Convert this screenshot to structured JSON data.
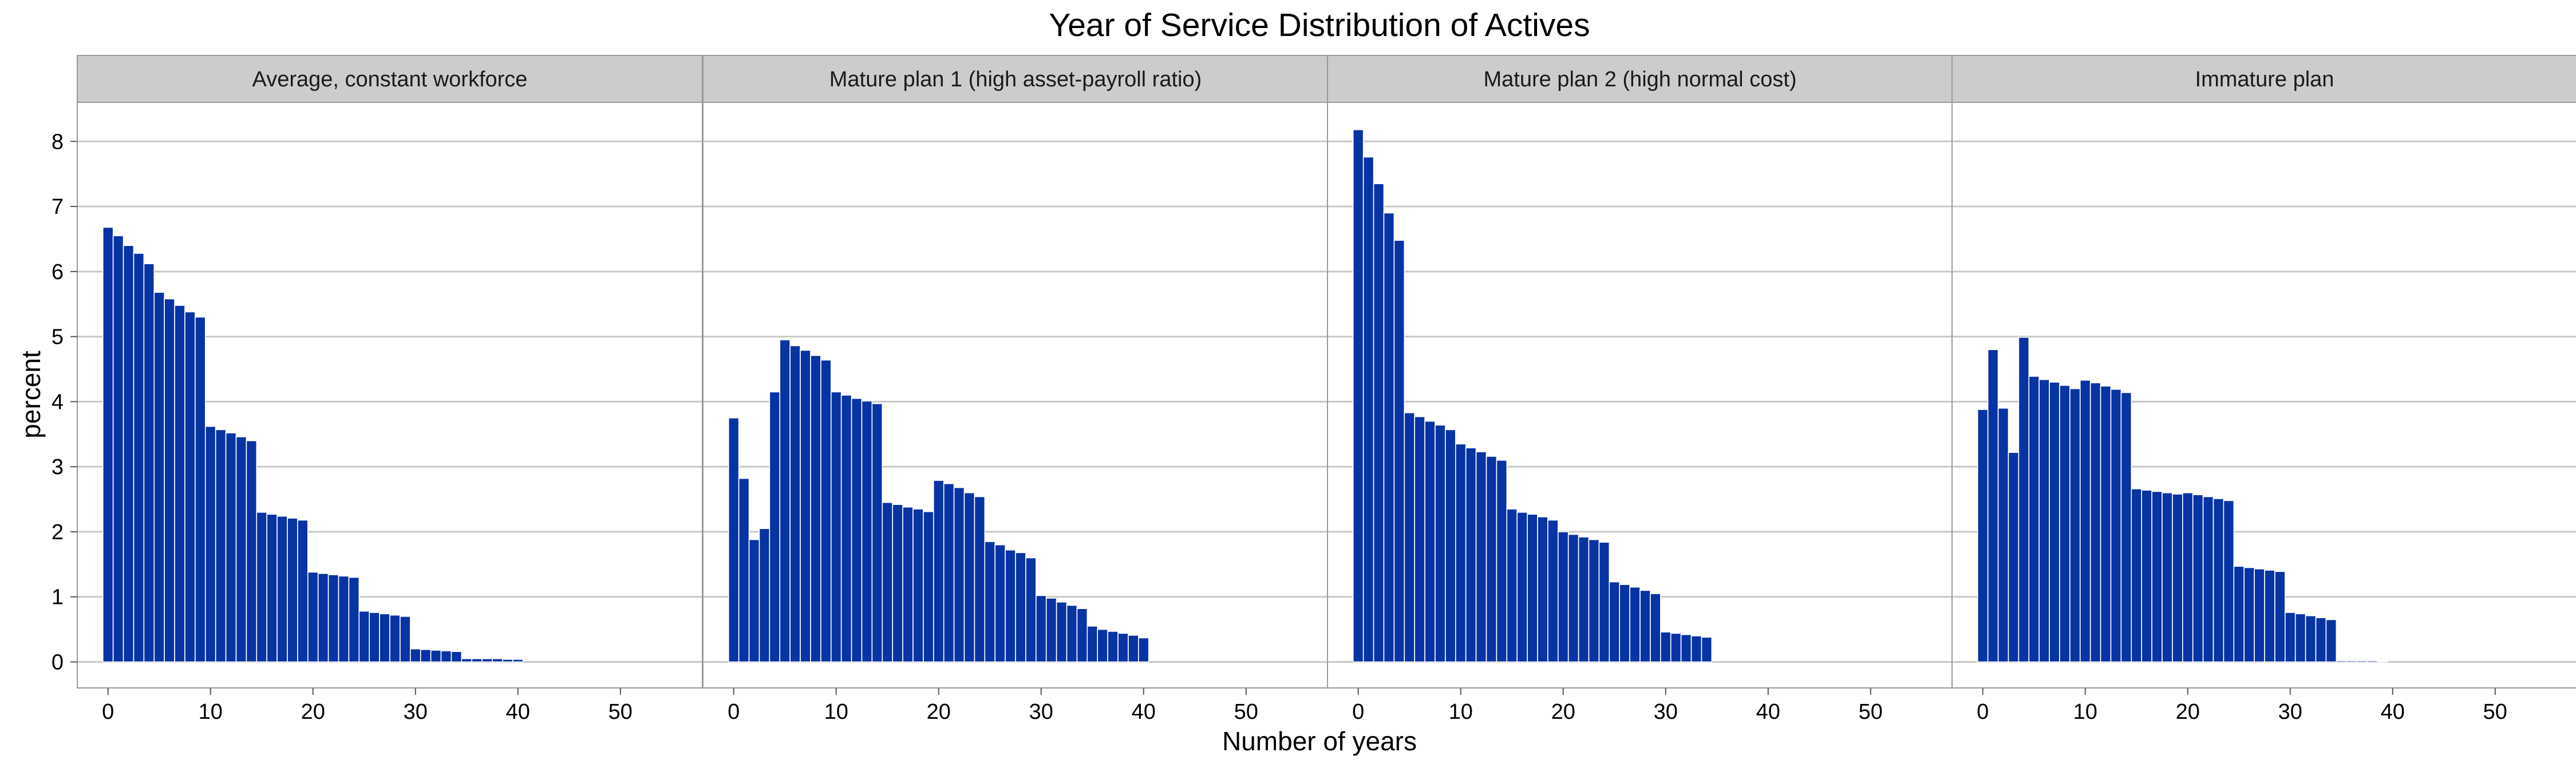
{
  "chart_data": {
    "type": "bar",
    "title": "Year of Service Distribution of Actives",
    "xlabel": "Number of years",
    "ylabel": "percent",
    "xlim": [
      -3,
      58
    ],
    "ylim": [
      -0.4,
      8.6
    ],
    "xticks": [
      0,
      10,
      20,
      30,
      40,
      50
    ],
    "yticks": [
      0,
      1,
      2,
      3,
      4,
      5,
      6,
      7,
      8
    ],
    "grid": true,
    "legend": "none",
    "colors": {
      "bar_fill": "#0833A3",
      "bar_edge": "#ffffff",
      "strip_fill": "#cccccc",
      "grid": "#c8c8c8",
      "panel_border": "#9a9a9a"
    },
    "panels": [
      {
        "strip": "Average, constant workforce",
        "x": [
          0,
          1,
          2,
          3,
          4,
          5,
          6,
          7,
          8,
          9,
          10,
          11,
          12,
          13,
          14,
          15,
          16,
          17,
          18,
          19,
          20,
          21,
          22,
          23,
          24,
          25,
          26,
          27,
          28,
          29,
          30,
          31,
          32,
          33,
          34,
          35,
          36,
          37,
          38,
          39,
          40
        ],
        "values": [
          6.68,
          6.55,
          6.4,
          6.28,
          6.12,
          5.68,
          5.58,
          5.48,
          5.38,
          5.3,
          3.62,
          3.57,
          3.52,
          3.46,
          3.4,
          2.3,
          2.27,
          2.24,
          2.21,
          2.18,
          1.38,
          1.36,
          1.34,
          1.32,
          1.3,
          0.78,
          0.76,
          0.74,
          0.72,
          0.7,
          0.2,
          0.19,
          0.18,
          0.17,
          0.16,
          0.05,
          0.05,
          0.05,
          0.05,
          0.04,
          0.04
        ]
      },
      {
        "strip": "Mature plan 1 (high asset-payroll ratio)",
        "x": [
          0,
          1,
          2,
          3,
          4,
          5,
          6,
          7,
          8,
          9,
          10,
          11,
          12,
          13,
          14,
          15,
          16,
          17,
          18,
          19,
          20,
          21,
          22,
          23,
          24,
          25,
          26,
          27,
          28,
          29,
          30,
          31,
          32,
          33,
          34,
          35,
          36,
          37,
          38,
          39,
          40
        ],
        "values": [
          3.75,
          2.82,
          1.88,
          2.05,
          4.15,
          4.95,
          4.86,
          4.79,
          4.71,
          4.64,
          4.15,
          4.1,
          4.05,
          4.01,
          3.97,
          2.45,
          2.42,
          2.38,
          2.35,
          2.31,
          2.79,
          2.74,
          2.68,
          2.6,
          2.54,
          1.85,
          1.8,
          1.72,
          1.68,
          1.6,
          1.02,
          0.98,
          0.92,
          0.87,
          0.82,
          0.55,
          0.5,
          0.47,
          0.44,
          0.41,
          0.37
        ]
      },
      {
        "strip": "Mature plan 2 (high normal cost)",
        "x": [
          0,
          1,
          2,
          3,
          4,
          5,
          6,
          7,
          8,
          9,
          10,
          11,
          12,
          13,
          14,
          15,
          16,
          17,
          18,
          19,
          20,
          21,
          22,
          23,
          24,
          25,
          26,
          27,
          28,
          29,
          30,
          31,
          32,
          33,
          34
        ],
        "values": [
          8.18,
          7.76,
          7.35,
          6.9,
          6.48,
          3.83,
          3.77,
          3.7,
          3.64,
          3.57,
          3.35,
          3.29,
          3.23,
          3.16,
          3.1,
          2.35,
          2.3,
          2.27,
          2.23,
          2.18,
          2.0,
          1.96,
          1.92,
          1.88,
          1.84,
          1.23,
          1.19,
          1.15,
          1.1,
          1.05,
          0.46,
          0.44,
          0.42,
          0.4,
          0.38
        ]
      },
      {
        "strip": "Immature plan",
        "x": [
          0,
          1,
          2,
          3,
          4,
          5,
          6,
          7,
          8,
          9,
          10,
          11,
          12,
          13,
          14,
          15,
          16,
          17,
          18,
          19,
          20,
          21,
          22,
          23,
          24,
          25,
          26,
          27,
          28,
          29,
          30,
          31,
          32,
          33,
          34,
          35,
          36,
          37,
          38,
          39
        ],
        "values": [
          3.88,
          4.8,
          3.9,
          3.22,
          4.99,
          4.39,
          4.34,
          4.3,
          4.25,
          4.2,
          4.33,
          4.29,
          4.24,
          4.19,
          4.14,
          2.66,
          2.64,
          2.62,
          2.6,
          2.58,
          2.6,
          2.57,
          2.54,
          2.51,
          2.48,
          1.47,
          1.45,
          1.43,
          1.41,
          1.39,
          0.76,
          0.74,
          0.71,
          0.68,
          0.65,
          0.02,
          0.02,
          0.02,
          0.02,
          0.01
        ]
      }
    ]
  }
}
